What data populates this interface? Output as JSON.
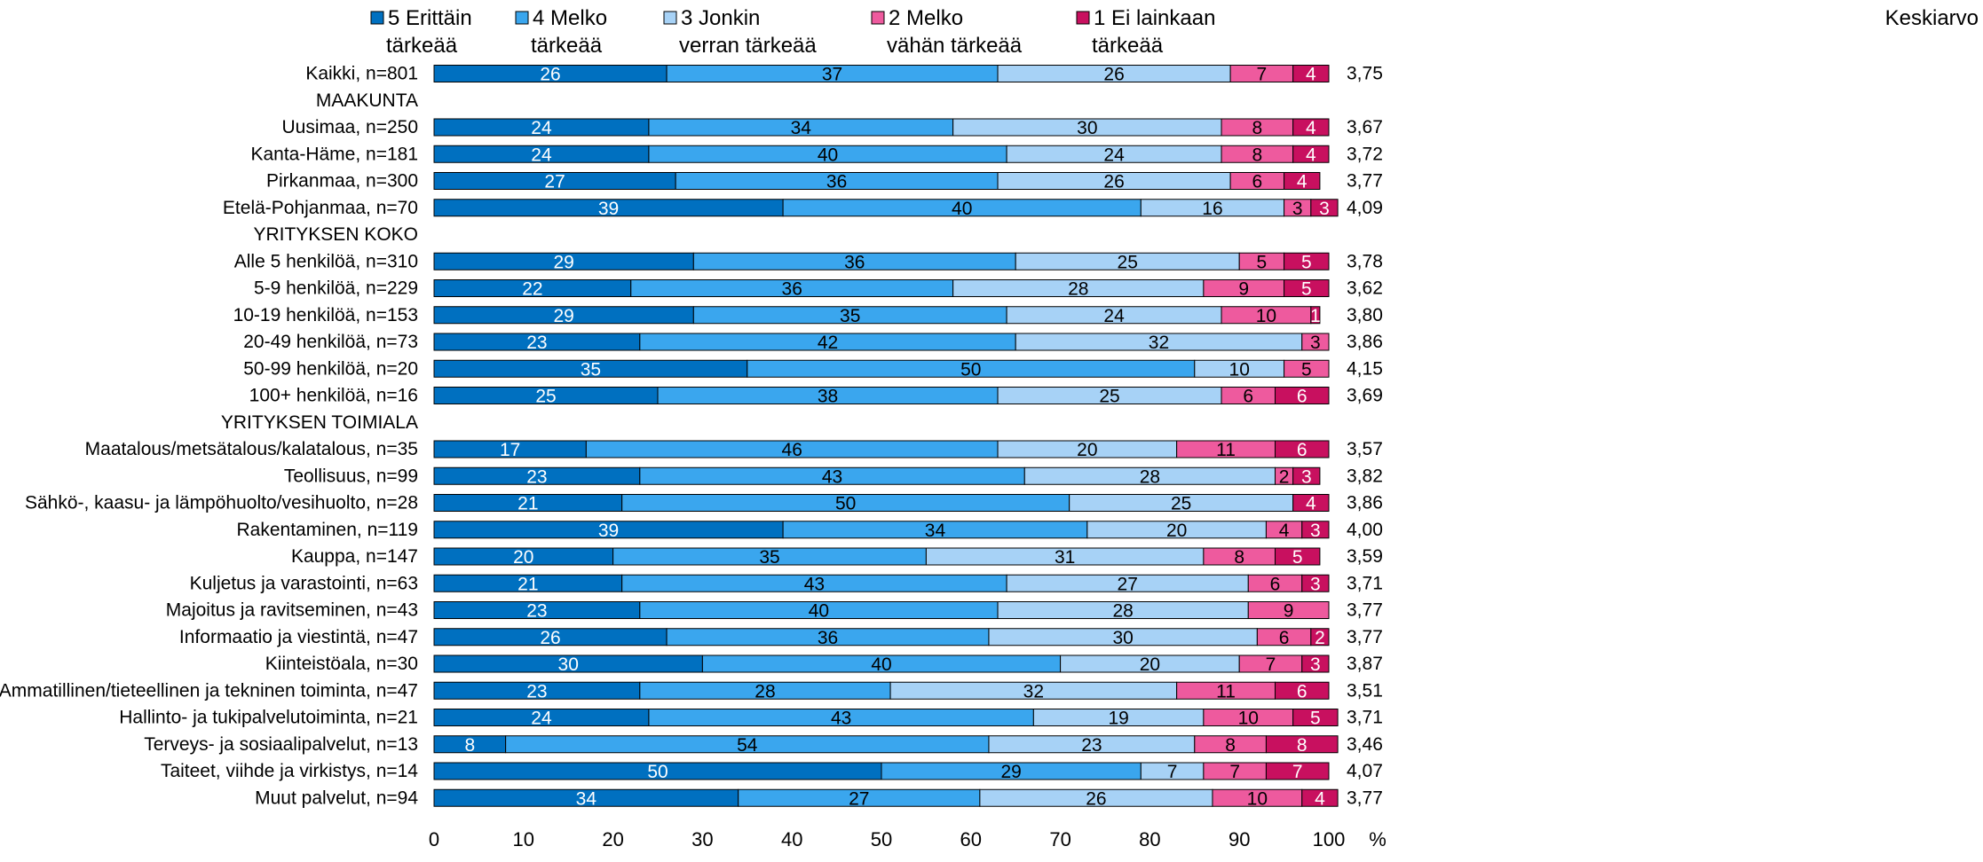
{
  "chart_data": {
    "type": "bar",
    "orientation": "horizontal",
    "stacked": true,
    "legend_position": "top",
    "xlim": [
      0,
      100
    ],
    "x_ticks": [
      "0",
      "10",
      "20",
      "30",
      "40",
      "50",
      "60",
      "70",
      "80",
      "90",
      "100"
    ],
    "x_unit": "%",
    "mean_label": "Keskiarvo",
    "series": [
      {
        "name": "5 Erittäin tärkeää",
        "label_lines": [
          "5 Erittäin",
          "tärkeää"
        ],
        "color": "#0070C0",
        "label_color": "#ffffff"
      },
      {
        "name": "4 Melko tärkeää",
        "label_lines": [
          "4 Melko",
          "tärkeää"
        ],
        "color": "#3AA6EE",
        "label_color": "#000000"
      },
      {
        "name": "3 Jonkin verran tärkeää",
        "label_lines": [
          "3 Jonkin",
          "verran tärkeää"
        ],
        "color": "#A7D2F6",
        "label_color": "#000000"
      },
      {
        "name": "2 Melko vähän tärkeää",
        "label_lines": [
          "2 Melko",
          "vähän tärkeää"
        ],
        "color": "#EE5A9E",
        "label_color": "#000000"
      },
      {
        "name": "1 Ei lainkaan tärkeää",
        "label_lines": [
          "1 Ei lainkaan",
          "tärkeää"
        ],
        "color": "#C8105F",
        "label_color": "#ffffff"
      }
    ],
    "rows": [
      {
        "label": "Kaikki, n=801",
        "values": [
          26,
          37,
          26,
          7,
          4
        ],
        "mean": "3,75"
      },
      {
        "label": "MAAKUNTA",
        "header": true
      },
      {
        "label": "Uusimaa, n=250",
        "values": [
          24,
          34,
          30,
          8,
          4
        ],
        "mean": "3,67"
      },
      {
        "label": "Kanta-Häme, n=181",
        "values": [
          24,
          40,
          24,
          8,
          4
        ],
        "mean": "3,72"
      },
      {
        "label": "Pirkanmaa, n=300",
        "values": [
          27,
          36,
          26,
          6,
          4
        ],
        "mean": "3,77"
      },
      {
        "label": "Etelä-Pohjanmaa, n=70",
        "values": [
          39,
          40,
          16,
          3,
          3
        ],
        "mean": "4,09"
      },
      {
        "label": "YRITYKSEN KOKO",
        "header": true
      },
      {
        "label": "Alle 5 henkilöä, n=310",
        "values": [
          29,
          36,
          25,
          5,
          5
        ],
        "mean": "3,78"
      },
      {
        "label": "5-9 henkilöä, n=229",
        "values": [
          22,
          36,
          28,
          9,
          5
        ],
        "mean": "3,62"
      },
      {
        "label": "10-19 henkilöä, n=153",
        "values": [
          29,
          35,
          24,
          10,
          1
        ],
        "mean": "3,80"
      },
      {
        "label": "20-49 henkilöä, n=73",
        "values": [
          23,
          42,
          32,
          3,
          null
        ],
        "mean": "3,86"
      },
      {
        "label": "50-99 henkilöä, n=20",
        "values": [
          35,
          50,
          10,
          5,
          null
        ],
        "mean": "4,15"
      },
      {
        "label": "100+ henkilöä, n=16",
        "values": [
          25,
          38,
          25,
          6,
          6
        ],
        "mean": "3,69"
      },
      {
        "label": "YRITYKSEN TOIMIALA",
        "header": true
      },
      {
        "label": "Maatalous/metsätalous/kalatalous, n=35",
        "values": [
          17,
          46,
          20,
          11,
          6
        ],
        "mean": "3,57"
      },
      {
        "label": "Teollisuus, n=99",
        "values": [
          23,
          43,
          28,
          2,
          3
        ],
        "mean": "3,82"
      },
      {
        "label": "Sähkö-, kaasu- ja lämpöhuolto/vesihuolto, n=28",
        "values": [
          21,
          50,
          25,
          null,
          4
        ],
        "mean": "3,86"
      },
      {
        "label": "Rakentaminen, n=119",
        "values": [
          39,
          34,
          20,
          4,
          3
        ],
        "mean": "4,00"
      },
      {
        "label": "Kauppa, n=147",
        "values": [
          20,
          35,
          31,
          8,
          5
        ],
        "mean": "3,59"
      },
      {
        "label": "Kuljetus ja varastointi, n=63",
        "values": [
          21,
          43,
          27,
          6,
          3
        ],
        "mean": "3,71"
      },
      {
        "label": "Majoitus ja ravitseminen, n=43",
        "values": [
          23,
          40,
          28,
          9,
          null
        ],
        "mean": "3,77"
      },
      {
        "label": "Informaatio ja viestintä, n=47",
        "values": [
          26,
          36,
          30,
          6,
          2
        ],
        "mean": "3,77"
      },
      {
        "label": "Kiinteistöala, n=30",
        "values": [
          30,
          40,
          20,
          7,
          3
        ],
        "mean": "3,87"
      },
      {
        "label": "Ammatillinen/tieteellinen ja tekninen toiminta, n=47",
        "values": [
          23,
          28,
          32,
          11,
          6
        ],
        "mean": "3,51"
      },
      {
        "label": "Hallinto- ja tukipalvelutoiminta, n=21",
        "values": [
          24,
          43,
          19,
          10,
          5
        ],
        "mean": "3,71"
      },
      {
        "label": "Terveys- ja sosiaalipalvelut, n=13",
        "values": [
          8,
          54,
          23,
          8,
          8
        ],
        "mean": "3,46"
      },
      {
        "label": "Taiteet, viihde ja virkistys, n=14",
        "values": [
          50,
          29,
          7,
          7,
          7
        ],
        "mean": "4,07"
      },
      {
        "label": "Muut palvelut, n=94",
        "values": [
          34,
          27,
          26,
          10,
          4
        ],
        "mean": "3,77"
      }
    ]
  }
}
